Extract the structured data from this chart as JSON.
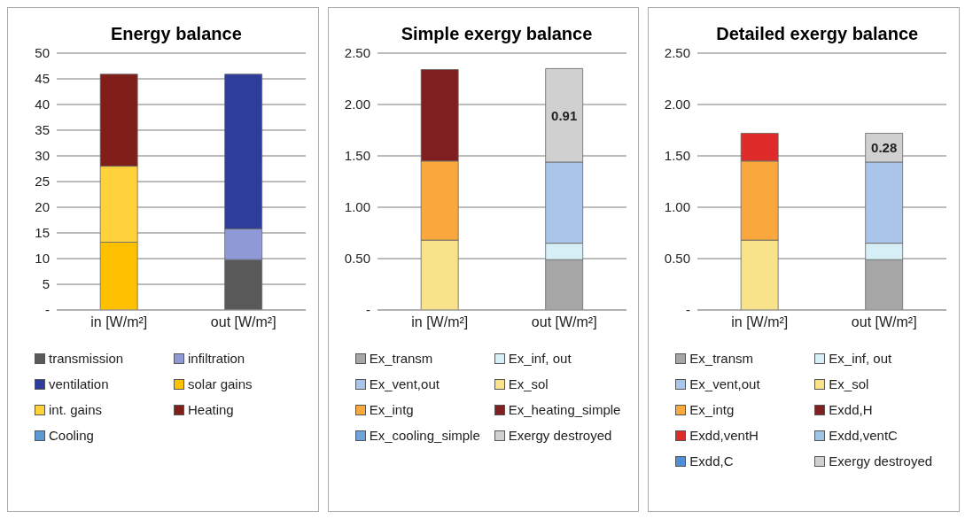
{
  "chart_data": [
    {
      "type": "bar",
      "title": "Energy balance",
      "categories": [
        "in [W/m²]",
        "out [W/m²]"
      ],
      "stacked": true,
      "ylim": [
        0,
        50
      ],
      "yticks": [
        {
          "value": 0,
          "label": "-"
        },
        5,
        10,
        15,
        20,
        25,
        30,
        35,
        40,
        45,
        50
      ],
      "grid": "y",
      "legend": "bottom",
      "series": [
        {
          "name": "transmission",
          "color": "#595959",
          "values": [
            null,
            9.8
          ]
        },
        {
          "name": "infiltration",
          "color": "#8e99d6",
          "values": [
            null,
            6.0
          ]
        },
        {
          "name": "ventilation",
          "color": "#2e3d99",
          "values": [
            null,
            30.1
          ]
        },
        {
          "name": "solar gains",
          "color": "#ffc000",
          "values": [
            13.2,
            null
          ]
        },
        {
          "name": "int. gains",
          "color": "#ffd23c",
          "values": [
            14.8,
            null
          ]
        },
        {
          "name": "Heating",
          "color": "#801f1a",
          "values": [
            17.9,
            null
          ]
        },
        {
          "name": "Cooling",
          "color": "#5b9bd5",
          "values": [
            null,
            null
          ]
        }
      ]
    },
    {
      "type": "bar",
      "title": "Simple exergy balance",
      "categories": [
        "in [W/m²]",
        "out [W/m²]"
      ],
      "stacked": true,
      "ylim": [
        0,
        2.5
      ],
      "yticks": [
        {
          "value": 0,
          "label": "-"
        },
        {
          "value": 0.5,
          "label": "0.50"
        },
        {
          "value": 1,
          "label": "1.00"
        },
        {
          "value": 1.5,
          "label": "1.50"
        },
        {
          "value": 2,
          "label": "2.00"
        },
        {
          "value": 2.5,
          "label": "2.50"
        }
      ],
      "grid": "y",
      "legend": "bottom",
      "series": [
        {
          "name": "Ex_transm",
          "color": "#a6a6a6",
          "values": [
            null,
            0.49
          ]
        },
        {
          "name": "Ex_inf, out",
          "color": "#d6eef5",
          "values": [
            null,
            0.16
          ]
        },
        {
          "name": "Ex_vent,out",
          "color": "#a9c6ea",
          "values": [
            null,
            0.79
          ]
        },
        {
          "name": "Ex_sol",
          "color": "#f9e38a",
          "values": [
            0.68,
            null
          ]
        },
        {
          "name": "Ex_intg",
          "color": "#f8a83c",
          "values": [
            0.77,
            null
          ]
        },
        {
          "name": "Ex_heating_simple",
          "color": "#7f1f1f",
          "values": [
            0.89,
            null
          ]
        },
        {
          "name": "Ex_cooling_simple",
          "color": "#6fa3dc",
          "values": [
            null,
            null
          ]
        },
        {
          "name": "Exergy destroyed",
          "color": "#d0d0d0",
          "values": [
            null,
            0.91
          ],
          "value_labels": [
            null,
            "0.91"
          ]
        }
      ]
    },
    {
      "type": "bar",
      "title": "Detailed exergy balance",
      "categories": [
        "in [W/m²]",
        "out [W/m²]"
      ],
      "stacked": true,
      "ylim": [
        0,
        2.5
      ],
      "yticks": [
        {
          "value": 0,
          "label": "-"
        },
        {
          "value": 0.5,
          "label": "0.50"
        },
        {
          "value": 1,
          "label": "1.00"
        },
        {
          "value": 1.5,
          "label": "1.50"
        },
        {
          "value": 2,
          "label": "2.00"
        },
        {
          "value": 2.5,
          "label": "2.50"
        }
      ],
      "grid": "y",
      "legend": "bottom",
      "series": [
        {
          "name": "Ex_transm",
          "color": "#a6a6a6",
          "values": [
            null,
            0.49
          ]
        },
        {
          "name": "Ex_inf, out",
          "color": "#d6eef5",
          "values": [
            null,
            0.16
          ]
        },
        {
          "name": "Ex_vent,out",
          "color": "#a9c6ea",
          "values": [
            null,
            0.79
          ]
        },
        {
          "name": "Ex_sol",
          "color": "#f9e38a",
          "values": [
            0.68,
            null
          ]
        },
        {
          "name": "Ex_intg",
          "color": "#f8a83c",
          "values": [
            0.77,
            null
          ]
        },
        {
          "name": "Exdd,H",
          "color": "#7f1f1f",
          "values": [
            null,
            null
          ]
        },
        {
          "name": "Exdd,ventH",
          "color": "#e02b2b",
          "values": [
            0.27,
            null
          ]
        },
        {
          "name": "Exdd,ventC",
          "color": "#9dc3e6",
          "values": [
            null,
            null
          ]
        },
        {
          "name": "Exdd,C",
          "color": "#4f8fd6",
          "values": [
            null,
            null
          ]
        },
        {
          "name": "Exergy destroyed",
          "color": "#d0d0d0",
          "values": [
            null,
            0.28
          ],
          "value_labels": [
            null,
            "0.28"
          ]
        }
      ]
    }
  ]
}
